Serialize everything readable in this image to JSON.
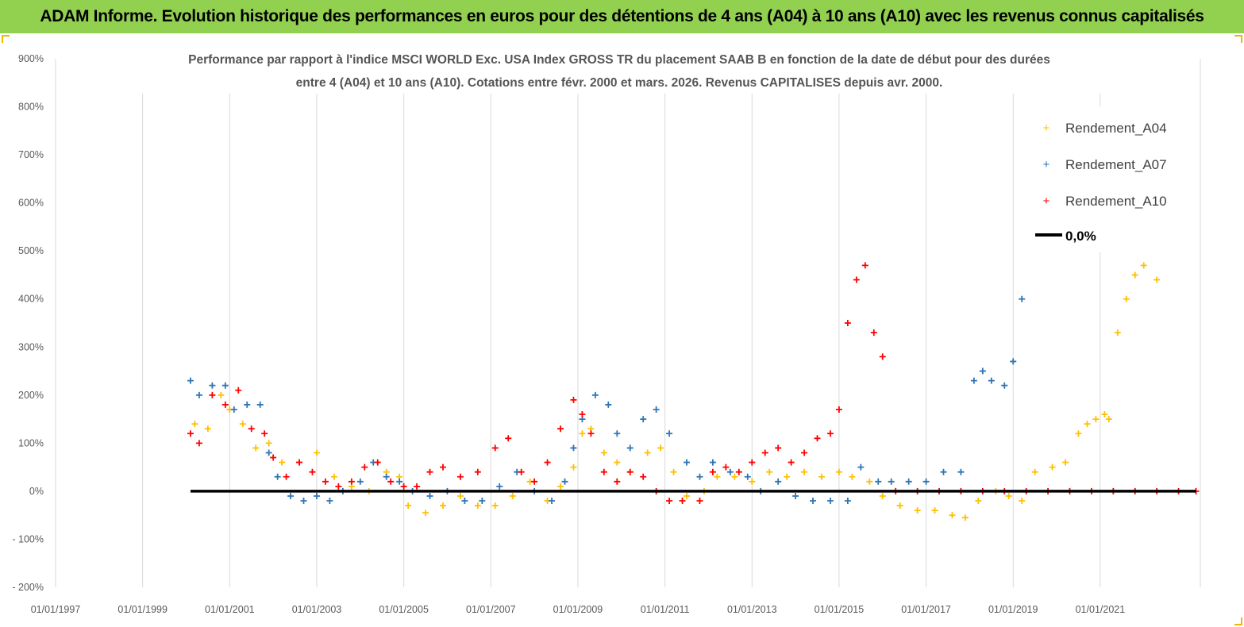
{
  "banner": {
    "text": "ADAM Informe. Evolution historique des performances en euros pour des détentions de 4 ans (A04) à 10 ans (A10) avec les revenus connus capitalisés"
  },
  "chart_data": {
    "type": "scatter",
    "title_lines": [
      "Performance par rapport à l'indice MSCI WORLD Exc. USA Index GROSS TR  du placement SAAB B en fonction de la date de début pour des durées",
      "entre 4 (A04) et 10 ans (A10). Cotations entre févr. 2000 et mars. 2026. Revenus CAPITALISES depuis avr. 2000."
    ],
    "xlabel": "",
    "ylabel": "",
    "x_range": [
      1997.0,
      2023.3
    ],
    "ylim": [
      -200,
      900
    ],
    "y_ticks": [
      -200,
      -100,
      0,
      100,
      200,
      300,
      400,
      500,
      600,
      700,
      800,
      900
    ],
    "y_tick_labels": [
      "- 200%",
      "- 100%",
      "0%",
      "100%",
      "200%",
      "300%",
      "400%",
      "500%",
      "600%",
      "700%",
      "800%",
      "900%"
    ],
    "x_ticks": [
      1997,
      1999,
      2001,
      2003,
      2005,
      2007,
      2009,
      2011,
      2013,
      2015,
      2017,
      2019,
      2021
    ],
    "x_tick_labels": [
      "01/01/1997",
      "01/01/1999",
      "01/01/2001",
      "01/01/2003",
      "01/01/2005",
      "01/01/2007",
      "01/01/2009",
      "01/01/2011",
      "01/01/2013",
      "01/01/2015",
      "01/01/2017",
      "01/01/2019",
      "01/01/2021"
    ],
    "grid": "vertical",
    "legend_position": "top-right",
    "series": [
      {
        "name": "Rendement_A04",
        "color": "#ffc000",
        "marker": "plus",
        "x": [
          2000.2,
          2000.5,
          2000.8,
          2001.0,
          2001.3,
          2001.6,
          2001.9,
          2002.2,
          2002.6,
          2003.0,
          2003.4,
          2003.8,
          2004.2,
          2004.6,
          2004.9,
          2005.1,
          2005.5,
          2005.9,
          2006.3,
          2006.7,
          2007.1,
          2007.5,
          2007.9,
          2008.3,
          2008.6,
          2008.9,
          2009.1,
          2009.3,
          2009.6,
          2009.9,
          2010.2,
          2010.6,
          2010.9,
          2011.2,
          2011.5,
          2011.9,
          2012.2,
          2012.6,
          2013.0,
          2013.4,
          2013.8,
          2014.2,
          2014.6,
          2015.0,
          2015.3,
          2015.7,
          2016.0,
          2016.4,
          2016.8,
          2017.2,
          2017.6,
          2017.9,
          2018.2,
          2018.6,
          2018.9,
          2019.2,
          2019.5,
          2019.9,
          2020.2,
          2020.5,
          2020.7,
          2020.9,
          2021.1,
          2021.2,
          2021.4,
          2021.6,
          2021.8,
          2022.0,
          2022.3
        ],
        "y": [
          140,
          130,
          200,
          170,
          140,
          90,
          100,
          60,
          60,
          80,
          30,
          10,
          0,
          40,
          30,
          -30,
          -45,
          -30,
          -10,
          -30,
          -30,
          -10,
          20,
          -20,
          10,
          50,
          120,
          130,
          80,
          60,
          40,
          80,
          90,
          40,
          -10,
          0,
          30,
          30,
          20,
          40,
          30,
          40,
          30,
          40,
          30,
          20,
          -10,
          -30,
          -40,
          -40,
          -50,
          -55,
          -20,
          0,
          -10,
          -20,
          40,
          50,
          60,
          120,
          140,
          150,
          160,
          150,
          330,
          400,
          450,
          470,
          440
        ]
      },
      {
        "name": "Rendement_A07",
        "color": "#2e75b6",
        "marker": "plus",
        "x": [
          2000.1,
          2000.3,
          2000.6,
          2000.9,
          2001.1,
          2001.4,
          2001.7,
          2001.9,
          2002.1,
          2002.4,
          2002.7,
          2003.0,
          2003.3,
          2003.6,
          2004.0,
          2004.3,
          2004.6,
          2004.9,
          2005.2,
          2005.6,
          2006.0,
          2006.4,
          2006.8,
          2007.2,
          2007.6,
          2008.0,
          2008.4,
          2008.7,
          2008.9,
          2009.1,
          2009.4,
          2009.7,
          2009.9,
          2010.2,
          2010.5,
          2010.8,
          2011.1,
          2011.5,
          2011.8,
          2012.1,
          2012.5,
          2012.9,
          2013.2,
          2013.6,
          2014.0,
          2014.4,
          2014.8,
          2015.2,
          2015.5,
          2015.9,
          2016.2,
          2016.6,
          2017.0,
          2017.4,
          2017.8,
          2018.1,
          2018.3,
          2018.5,
          2018.8,
          2019.0,
          2019.2
        ],
        "y": [
          230,
          200,
          220,
          220,
          170,
          180,
          180,
          80,
          30,
          -10,
          -20,
          -10,
          -20,
          0,
          20,
          60,
          30,
          20,
          0,
          -10,
          0,
          -20,
          -20,
          10,
          40,
          0,
          -20,
          20,
          90,
          150,
          200,
          180,
          120,
          90,
          150,
          170,
          120,
          60,
          30,
          60,
          40,
          30,
          0,
          20,
          -10,
          -20,
          -20,
          -20,
          50,
          20,
          20,
          20,
          20,
          40,
          40,
          230,
          250,
          230,
          220,
          270,
          400
        ]
      },
      {
        "name": "Rendement_A10",
        "color": "#ff0000",
        "marker": "plus",
        "x": [
          2000.1,
          2000.3,
          2000.6,
          2000.9,
          2001.2,
          2001.5,
          2001.8,
          2002.0,
          2002.3,
          2002.6,
          2002.9,
          2003.2,
          2003.5,
          2003.8,
          2004.1,
          2004.4,
          2004.7,
          2005.0,
          2005.3,
          2005.6,
          2005.9,
          2006.3,
          2006.7,
          2007.1,
          2007.4,
          2007.7,
          2008.0,
          2008.3,
          2008.6,
          2008.9,
          2009.1,
          2009.3,
          2009.6,
          2009.9,
          2010.2,
          2010.5,
          2010.8,
          2011.1,
          2011.4,
          2011.8,
          2012.1,
          2012.4,
          2012.7,
          2013.0,
          2013.3,
          2013.6,
          2013.9,
          2014.2,
          2014.5,
          2014.8,
          2015.0,
          2015.2,
          2015.4,
          2015.6,
          2015.8,
          2016.0,
          2016.3,
          2016.8,
          2017.3,
          2017.8,
          2018.3,
          2018.8,
          2019.3,
          2019.8,
          2020.3,
          2020.8,
          2021.3,
          2021.8,
          2022.3,
          2022.8,
          2023.2
        ],
        "y": [
          120,
          100,
          200,
          180,
          210,
          130,
          120,
          70,
          30,
          60,
          40,
          20,
          10,
          20,
          50,
          60,
          20,
          10,
          10,
          40,
          50,
          30,
          40,
          90,
          110,
          40,
          20,
          60,
          130,
          190,
          160,
          120,
          40,
          20,
          40,
          30,
          0,
          -20,
          -20,
          -20,
          40,
          50,
          40,
          60,
          80,
          90,
          60,
          80,
          110,
          120,
          170,
          350,
          440,
          470,
          330,
          280,
          0,
          0,
          0,
          0,
          0,
          0,
          0,
          0,
          0,
          0,
          0,
          0,
          0,
          0,
          0
        ]
      },
      {
        "name": "0,0%",
        "color": "#000000",
        "marker": "line",
        "x": [
          2000.1,
          2023.2
        ],
        "y": [
          0,
          0
        ]
      }
    ]
  }
}
